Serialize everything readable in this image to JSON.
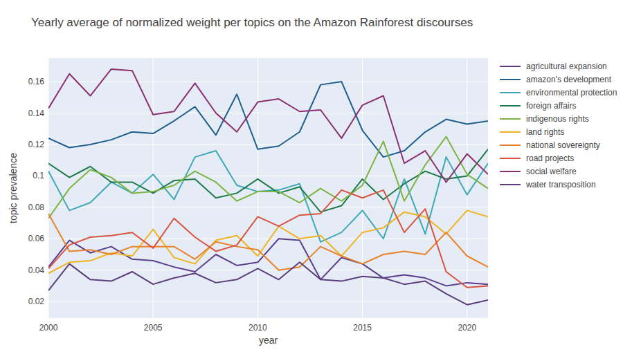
{
  "chart_data": {
    "type": "line",
    "title": "Yearly average of normalized weight per topics on the Amazon Rainforest discourses",
    "x_label": "year",
    "y_label": "topic prevalence",
    "x": [
      2000,
      2001,
      2002,
      2003,
      2004,
      2005,
      2006,
      2007,
      2008,
      2009,
      2010,
      2011,
      2012,
      2013,
      2014,
      2015,
      2016,
      2017,
      2018,
      2019,
      2020,
      2021
    ],
    "xlim": [
      2000,
      2021
    ],
    "xticks": [
      2000,
      2005,
      2010,
      2015,
      2020
    ],
    "ylim": [
      0.0095,
      0.175
    ],
    "yticks": [
      0.02,
      0.04,
      0.06,
      0.08,
      0.1,
      0.12,
      0.14,
      0.16
    ],
    "grid": true,
    "legend": "right",
    "series": [
      {
        "name": "agricultural expansion",
        "color": "#5b3f8c",
        "values": [
          0.042,
          0.059,
          0.051,
          0.055,
          0.047,
          0.046,
          0.042,
          0.039,
          0.05,
          0.043,
          0.045,
          0.06,
          0.059,
          0.034,
          0.048,
          0.044,
          0.035,
          0.037,
          0.035,
          0.03,
          0.032,
          0.031
        ]
      },
      {
        "name": "amazon's development",
        "color": "#1f5f8b",
        "values": [
          0.124,
          0.118,
          0.12,
          0.123,
          0.128,
          0.127,
          0.135,
          0.144,
          0.126,
          0.152,
          0.117,
          0.119,
          0.128,
          0.158,
          0.16,
          0.129,
          0.112,
          0.116,
          0.128,
          0.136,
          0.133,
          0.135
        ]
      },
      {
        "name": "environmental protection",
        "color": "#3ca9b5",
        "values": [
          0.103,
          0.078,
          0.083,
          0.096,
          0.089,
          0.101,
          0.085,
          0.112,
          0.116,
          0.094,
          0.09,
          0.091,
          0.095,
          0.058,
          0.064,
          0.078,
          0.06,
          0.098,
          0.063,
          0.112,
          0.088,
          0.108
        ]
      },
      {
        "name": "foreign affairs",
        "color": "#1e7a4a",
        "values": [
          0.108,
          0.099,
          0.106,
          0.096,
          0.096,
          0.089,
          0.097,
          0.098,
          0.086,
          0.089,
          0.098,
          0.089,
          0.093,
          0.077,
          0.081,
          0.098,
          0.085,
          0.095,
          0.103,
          0.098,
          0.1,
          0.117
        ]
      },
      {
        "name": "indigenous rights",
        "color": "#7cb342",
        "values": [
          0.073,
          0.092,
          0.104,
          0.099,
          0.089,
          0.09,
          0.094,
          0.103,
          0.096,
          0.084,
          0.09,
          0.09,
          0.083,
          0.092,
          0.084,
          0.094,
          0.122,
          0.084,
          0.107,
          0.125,
          0.101,
          0.092
        ]
      },
      {
        "name": "land rights",
        "color": "#f0b323",
        "values": [
          0.038,
          0.045,
          0.046,
          0.051,
          0.049,
          0.066,
          0.048,
          0.044,
          0.059,
          0.062,
          0.049,
          0.068,
          0.06,
          0.062,
          0.049,
          0.064,
          0.067,
          0.077,
          0.074,
          0.063,
          0.078,
          0.074
        ]
      },
      {
        "name": "national sovereignty",
        "color": "#e8822a",
        "values": [
          0.076,
          0.052,
          0.053,
          0.05,
          0.055,
          0.055,
          0.055,
          0.047,
          0.058,
          0.055,
          0.053,
          0.04,
          0.042,
          0.055,
          0.049,
          0.044,
          0.05,
          0.052,
          0.05,
          0.064,
          0.049,
          0.042
        ]
      },
      {
        "name": "road projects",
        "color": "#d9533f",
        "values": [
          0.041,
          0.056,
          0.061,
          0.062,
          0.064,
          0.054,
          0.073,
          0.061,
          0.052,
          0.056,
          0.074,
          0.068,
          0.075,
          0.076,
          0.091,
          0.086,
          0.091,
          0.064,
          0.079,
          0.039,
          0.029,
          0.03
        ]
      },
      {
        "name": "social welfare",
        "color": "#8b2f6f",
        "values": [
          0.143,
          0.165,
          0.151,
          0.168,
          0.167,
          0.139,
          0.141,
          0.159,
          0.14,
          0.128,
          0.147,
          0.149,
          0.141,
          0.142,
          0.124,
          0.145,
          0.151,
          0.108,
          0.116,
          0.096,
          0.114,
          0.101
        ]
      },
      {
        "name": "water transposition",
        "color": "#5a3d7a",
        "values": [
          0.027,
          0.044,
          0.034,
          0.033,
          0.039,
          0.031,
          0.035,
          0.038,
          0.032,
          0.034,
          0.041,
          0.034,
          0.045,
          0.034,
          0.033,
          0.036,
          0.035,
          0.031,
          0.033,
          0.025,
          0.018,
          0.021
        ]
      }
    ]
  }
}
